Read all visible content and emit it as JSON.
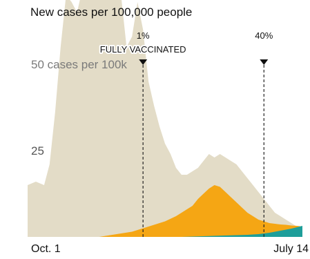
{
  "chart_data": {
    "type": "area",
    "title": "New cases per 100,000 people",
    "x_start": "Oct. 1",
    "x_end": "July 14",
    "xlim": [
      0,
      100
    ],
    "ylim": [
      0,
      75
    ],
    "y_ticks": [
      {
        "value": 25,
        "label": "25"
      },
      {
        "value": 50,
        "label": "50 cases per 100k"
      }
    ],
    "x_ticks": [
      {
        "x": 0,
        "label": "Oct. 1"
      },
      {
        "x": 100,
        "label": "July 14"
      }
    ],
    "annotations": [
      {
        "x": 42,
        "line1": "1%",
        "line2": "FULLY VACCINATED"
      },
      {
        "x": 86,
        "line1": "40%",
        "line2": ""
      }
    ],
    "series": [
      {
        "color": "#e3dcc7",
        "x": [
          0,
          3,
          6,
          8,
          10,
          12,
          14,
          16,
          18,
          20,
          22,
          24,
          26,
          28,
          30,
          32,
          34,
          36,
          38,
          40,
          42,
          44,
          46,
          48,
          50,
          52,
          54,
          56,
          58,
          60,
          62,
          64,
          66,
          68,
          70,
          72,
          74,
          76,
          78,
          80,
          82,
          84,
          86,
          88,
          90,
          92,
          94,
          96,
          98,
          100
        ],
        "y": [
          15,
          16,
          15,
          21,
          36,
          55,
          70,
          68,
          65,
          72,
          70,
          75,
          72,
          70,
          75,
          74,
          70,
          55,
          58,
          68,
          60,
          45,
          38,
          32,
          27,
          24,
          20,
          18,
          18,
          19,
          20,
          22,
          24,
          23,
          24,
          23,
          22,
          21,
          19,
          17,
          15,
          13,
          11,
          9,
          7,
          6,
          5,
          4,
          3,
          3
        ]
      },
      {
        "color": "#f5a614",
        "x": [
          26,
          30,
          34,
          38,
          42,
          46,
          50,
          54,
          56,
          58,
          60,
          62,
          64,
          66,
          68,
          70,
          72,
          74,
          76,
          78,
          80,
          82,
          84,
          86,
          88,
          90,
          92,
          94,
          96,
          98,
          100
        ],
        "y": [
          0,
          0.5,
          1,
          1.5,
          2.5,
          3.5,
          4.5,
          6,
          7,
          8,
          9,
          11,
          12.5,
          14,
          15,
          14.5,
          13,
          11.5,
          10,
          8.5,
          7,
          6,
          5,
          4.5,
          4,
          3.8,
          3.6,
          3.5,
          3.3,
          3.2,
          3
        ]
      },
      {
        "color": "#1e9e9a",
        "x": [
          56,
          60,
          64,
          68,
          72,
          76,
          80,
          84,
          86,
          88,
          90,
          92,
          94,
          96,
          98,
          100
        ],
        "y": [
          0,
          0.1,
          0.2,
          0.3,
          0.4,
          0.5,
          0.6,
          0.8,
          1,
          1.2,
          1.5,
          1.8,
          2.1,
          2.4,
          2.8,
          3.2
        ]
      }
    ]
  }
}
